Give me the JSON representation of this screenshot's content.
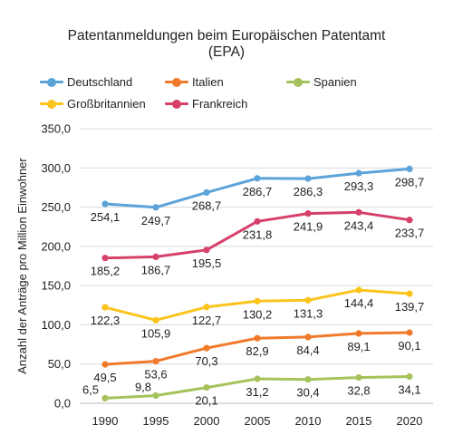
{
  "chart_data": {
    "type": "line",
    "title_line1": "Patentanmeldungen beim Europäischen Patentamt",
    "title_line2": "(EPA)",
    "ylabel": "Anzahl der Anträge pro Million Einwohner",
    "xlabel": "",
    "x": [
      "1990",
      "1995",
      "2000",
      "2005",
      "2010",
      "2015",
      "2020"
    ],
    "ylim": [
      0,
      350
    ],
    "yticks": [
      "0,0",
      "50,0",
      "100,0",
      "150,0",
      "200,0",
      "250,0",
      "300,0",
      "350,0"
    ],
    "grid": "horizontal",
    "legend_position": "top",
    "series": [
      {
        "name": "Deutschland",
        "color": "#5ba3d9",
        "values": [
          254.1,
          249.7,
          268.7,
          286.7,
          286.3,
          293.3,
          298.7
        ],
        "labels": [
          "254,1",
          "249,7",
          "268,7",
          "286,7",
          "286,3",
          "293,3",
          "298,7"
        ]
      },
      {
        "name": "Italien",
        "color": "#f07a2a",
        "values": [
          49.5,
          53.6,
          70.3,
          82.9,
          84.4,
          89.1,
          90.1
        ],
        "labels": [
          "49,5",
          "53,6",
          "70,3",
          "82,9",
          "84,4",
          "89,1",
          "90,1"
        ]
      },
      {
        "name": "Spanien",
        "color": "#a6c25a",
        "values": [
          6.5,
          9.8,
          20.1,
          31.2,
          30.4,
          32.8,
          34.1
        ],
        "labels": [
          "6,5",
          "9,8",
          "20,1",
          "31,2",
          "30,4",
          "32,8",
          "34,1"
        ]
      },
      {
        "name": "Großbritannien",
        "color": "#fbc31c",
        "values": [
          122.3,
          105.9,
          122.7,
          130.2,
          131.3,
          144.4,
          139.7
        ],
        "labels": [
          "122,3",
          "105,9",
          "122,7",
          "130,2",
          "131,3",
          "144,4",
          "139,7"
        ]
      },
      {
        "name": "Frankreich",
        "color": "#d6406b",
        "values": [
          185.2,
          186.7,
          195.5,
          231.8,
          241.9,
          243.4,
          233.7
        ],
        "labels": [
          "185,2",
          "186,7",
          "195,5",
          "231,8",
          "241,9",
          "243,4",
          "233,7"
        ]
      }
    ]
  }
}
